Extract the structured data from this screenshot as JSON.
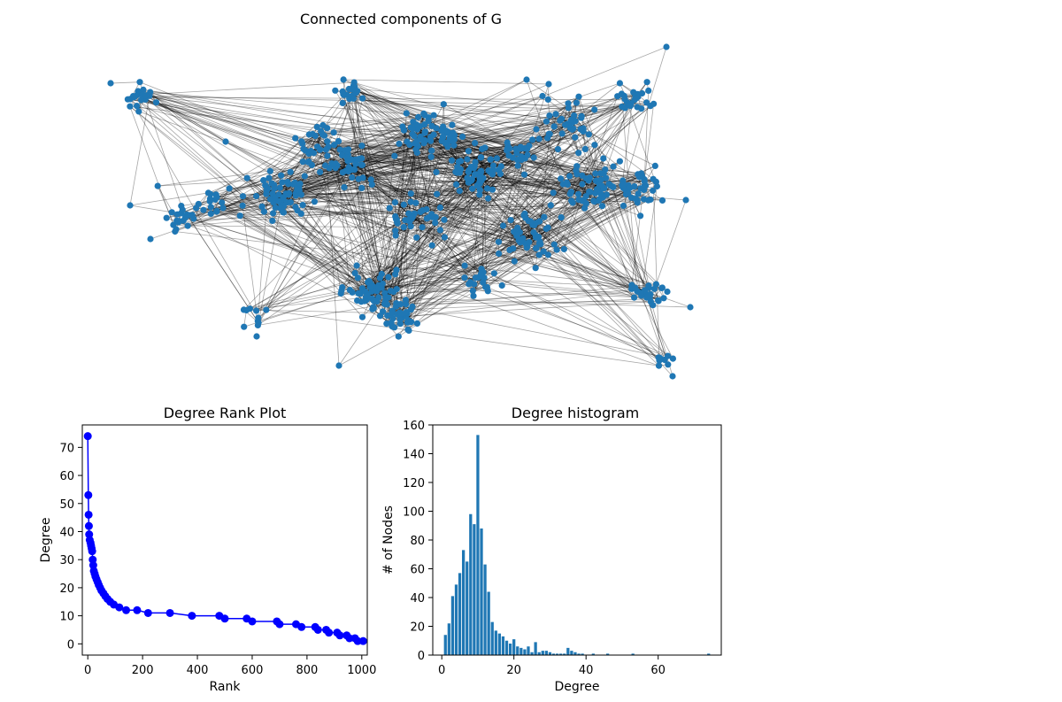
{
  "chart_data": [
    {
      "type": "network",
      "title": "Connected components of G",
      "node_color": "#1f77b4",
      "edge_color": "#000000"
    },
    {
      "type": "line",
      "title": "Degree Rank Plot",
      "xlabel": "Rank",
      "ylabel": "Degree",
      "xlim": [
        -20,
        1020
      ],
      "ylim": [
        -4,
        78
      ],
      "xticks": [
        0,
        200,
        400,
        600,
        800,
        1000
      ],
      "yticks": [
        0,
        10,
        20,
        30,
        40,
        50,
        60,
        70
      ],
      "color": "#0000ff",
      "points": [
        [
          0,
          74
        ],
        [
          2,
          53
        ],
        [
          3,
          46
        ],
        [
          4,
          42
        ],
        [
          5,
          39
        ],
        [
          7,
          37
        ],
        [
          10,
          36
        ],
        [
          12,
          35
        ],
        [
          14,
          34
        ],
        [
          16,
          33
        ],
        [
          18,
          30
        ],
        [
          20,
          28
        ],
        [
          22,
          26
        ],
        [
          25,
          25
        ],
        [
          28,
          24
        ],
        [
          32,
          23
        ],
        [
          36,
          22
        ],
        [
          40,
          21
        ],
        [
          45,
          20
        ],
        [
          50,
          19
        ],
        [
          57,
          18
        ],
        [
          64,
          17
        ],
        [
          72,
          16
        ],
        [
          82,
          15
        ],
        [
          95,
          14
        ],
        [
          115,
          13
        ],
        [
          140,
          12
        ],
        [
          180,
          12
        ],
        [
          220,
          11
        ],
        [
          300,
          11
        ],
        [
          380,
          10
        ],
        [
          480,
          10
        ],
        [
          500,
          9
        ],
        [
          580,
          9
        ],
        [
          600,
          8
        ],
        [
          690,
          8
        ],
        [
          700,
          7
        ],
        [
          760,
          7
        ],
        [
          780,
          6
        ],
        [
          830,
          6
        ],
        [
          840,
          5
        ],
        [
          870,
          5
        ],
        [
          880,
          4
        ],
        [
          910,
          4
        ],
        [
          920,
          3
        ],
        [
          945,
          3
        ],
        [
          955,
          2
        ],
        [
          975,
          2
        ],
        [
          985,
          1
        ],
        [
          1005,
          1
        ]
      ]
    },
    {
      "type": "bar",
      "title": "Degree histogram",
      "xlabel": "Degree",
      "ylabel": "# of Nodes",
      "xlim": [
        -2.5,
        77.5
      ],
      "ylim": [
        0,
        160
      ],
      "xticks": [
        0,
        20,
        40,
        60
      ],
      "yticks": [
        0,
        20,
        40,
        60,
        80,
        100,
        120,
        140,
        160
      ],
      "color": "#1f77b4",
      "bars": [
        [
          1,
          14
        ],
        [
          2,
          22
        ],
        [
          3,
          41
        ],
        [
          4,
          49
        ],
        [
          5,
          57
        ],
        [
          6,
          73
        ],
        [
          7,
          65
        ],
        [
          8,
          98
        ],
        [
          9,
          91
        ],
        [
          10,
          153
        ],
        [
          11,
          88
        ],
        [
          12,
          63
        ],
        [
          13,
          44
        ],
        [
          14,
          23
        ],
        [
          15,
          17
        ],
        [
          16,
          15
        ],
        [
          17,
          13
        ],
        [
          18,
          10
        ],
        [
          19,
          8
        ],
        [
          20,
          11
        ],
        [
          21,
          6
        ],
        [
          22,
          5
        ],
        [
          23,
          4
        ],
        [
          24,
          6
        ],
        [
          25,
          2
        ],
        [
          26,
          9
        ],
        [
          27,
          2
        ],
        [
          28,
          3
        ],
        [
          29,
          3
        ],
        [
          30,
          2
        ],
        [
          31,
          1
        ],
        [
          32,
          1
        ],
        [
          33,
          1
        ],
        [
          34,
          1
        ],
        [
          35,
          5
        ],
        [
          36,
          3
        ],
        [
          37,
          2
        ],
        [
          38,
          1
        ],
        [
          39,
          1
        ],
        [
          42,
          1
        ],
        [
          46,
          1
        ],
        [
          53,
          1
        ],
        [
          74,
          1
        ]
      ]
    }
  ]
}
